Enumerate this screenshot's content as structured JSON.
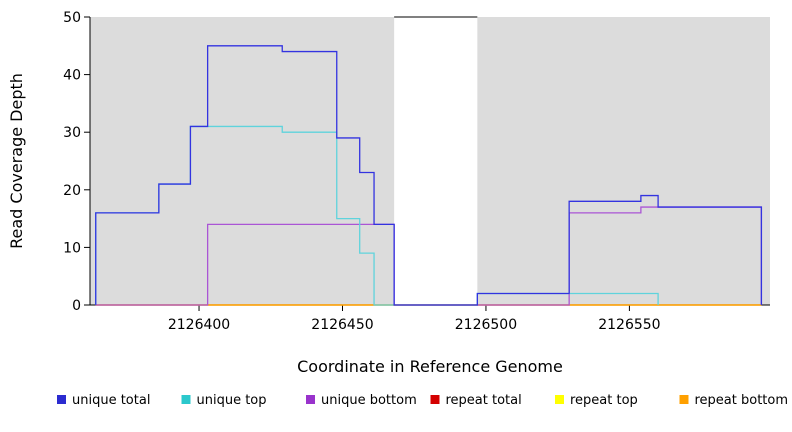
{
  "chart_data": {
    "type": "line",
    "step": true,
    "xlabel": "Coordinate in Reference Genome",
    "ylabel": "Read Coverage Depth",
    "xlim": [
      2126362,
      2126599
    ],
    "ylim": [
      0,
      50
    ],
    "x_ticks": [
      2126400,
      2126450,
      2126500,
      2126550
    ],
    "y_ticks": [
      0,
      10,
      20,
      30,
      40,
      50
    ],
    "grid": false,
    "plot_background": "#FFFFFF",
    "masked_region_color": "#DCDCDC",
    "masked_regions": [
      {
        "x0": 2126362,
        "x1": 2126468
      },
      {
        "x0": 2126497,
        "x1": 2126599
      }
    ],
    "series": [
      {
        "name": "repeat total",
        "color": "#D40000",
        "points": [
          [
            2126364,
            0
          ],
          [
            2126596,
            0
          ]
        ]
      },
      {
        "name": "repeat top",
        "color": "#FFFF00",
        "points": [
          [
            2126364,
            0
          ],
          [
            2126596,
            0
          ]
        ]
      },
      {
        "name": "repeat bottom",
        "color": "#FFA000",
        "points": [
          [
            2126364,
            0
          ],
          [
            2126596,
            0
          ]
        ]
      },
      {
        "name": "unique bottom",
        "color": "#AA55D5",
        "points": [
          [
            2126364,
            0
          ],
          [
            2126403,
            14
          ],
          [
            2126468,
            0
          ],
          [
            2126529,
            16
          ],
          [
            2126554,
            17
          ],
          [
            2126596,
            0
          ]
        ]
      },
      {
        "name": "unique top",
        "color": "#5FD3DC",
        "points": [
          [
            2126364,
            16
          ],
          [
            2126386,
            21
          ],
          [
            2126397,
            31
          ],
          [
            2126429,
            30
          ],
          [
            2126448,
            15
          ],
          [
            2126456,
            9
          ],
          [
            2126461,
            0
          ],
          [
            2126497,
            2
          ],
          [
            2126560,
            0
          ]
        ]
      },
      {
        "name": "unique total",
        "color": "#3333E0",
        "points": [
          [
            2126364,
            16
          ],
          [
            2126386,
            21
          ],
          [
            2126397,
            31
          ],
          [
            2126403,
            45
          ],
          [
            2126429,
            44
          ],
          [
            2126448,
            29
          ],
          [
            2126456,
            23
          ],
          [
            2126461,
            14
          ],
          [
            2126468,
            0
          ],
          [
            2126497,
            2
          ],
          [
            2126529,
            18
          ],
          [
            2126554,
            19
          ],
          [
            2126560,
            17
          ],
          [
            2126596,
            0
          ]
        ]
      }
    ],
    "legend": [
      {
        "label": "unique total",
        "color": "#2B2BD0"
      },
      {
        "label": "unique top",
        "color": "#2BC8CC"
      },
      {
        "label": "unique bottom",
        "color": "#9933CC"
      },
      {
        "label": "repeat total",
        "color": "#D40000"
      },
      {
        "label": "repeat top",
        "color": "#FFFF00"
      },
      {
        "label": "repeat bottom",
        "color": "#FFA000"
      }
    ]
  }
}
